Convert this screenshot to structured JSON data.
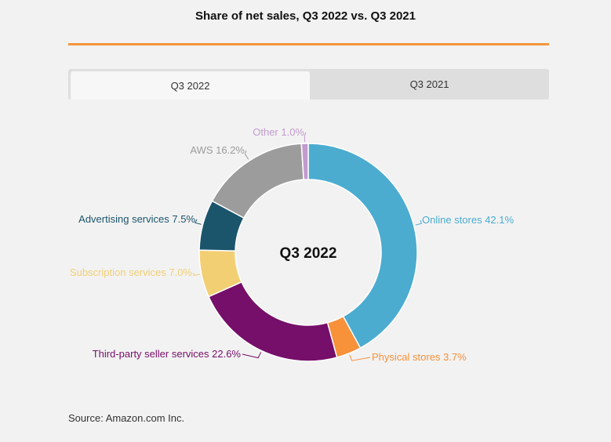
{
  "title": "Share of net sales, Q3 2022 vs. Q3 2021",
  "tabs": [
    {
      "label": "Q3 2022",
      "active": true
    },
    {
      "label": "Q3 2021",
      "active": false
    }
  ],
  "center_label": "Q3 2022",
  "source": "Source: Amazon.com Inc.",
  "colors": {
    "accent_rule": "#f4963c"
  },
  "chart_data": {
    "type": "pie",
    "variant": "donut",
    "slices": [
      {
        "name": "Online stores",
        "value": 42.1,
        "label": "Online stores 42.1%",
        "color": "#4bacd0"
      },
      {
        "name": "Physical stores",
        "value": 3.7,
        "label": "Physical stores 3.7%",
        "color": "#f7913a"
      },
      {
        "name": "Third-party seller services",
        "value": 22.6,
        "label": "Third-party seller services 22.6%",
        "color": "#750f69"
      },
      {
        "name": "Subscription services",
        "value": 7.0,
        "label": "Subscription services 7.0%",
        "color": "#f3cf74"
      },
      {
        "name": "Advertising services",
        "value": 7.5,
        "label": "Advertising services 7.5%",
        "color": "#1b556b"
      },
      {
        "name": "AWS",
        "value": 16.2,
        "label": "AWS 16.2%",
        "color": "#9c9c9c"
      },
      {
        "name": "Other",
        "value": 1.0,
        "label": "Other 1.0%",
        "color": "#c39bcf"
      }
    ]
  }
}
